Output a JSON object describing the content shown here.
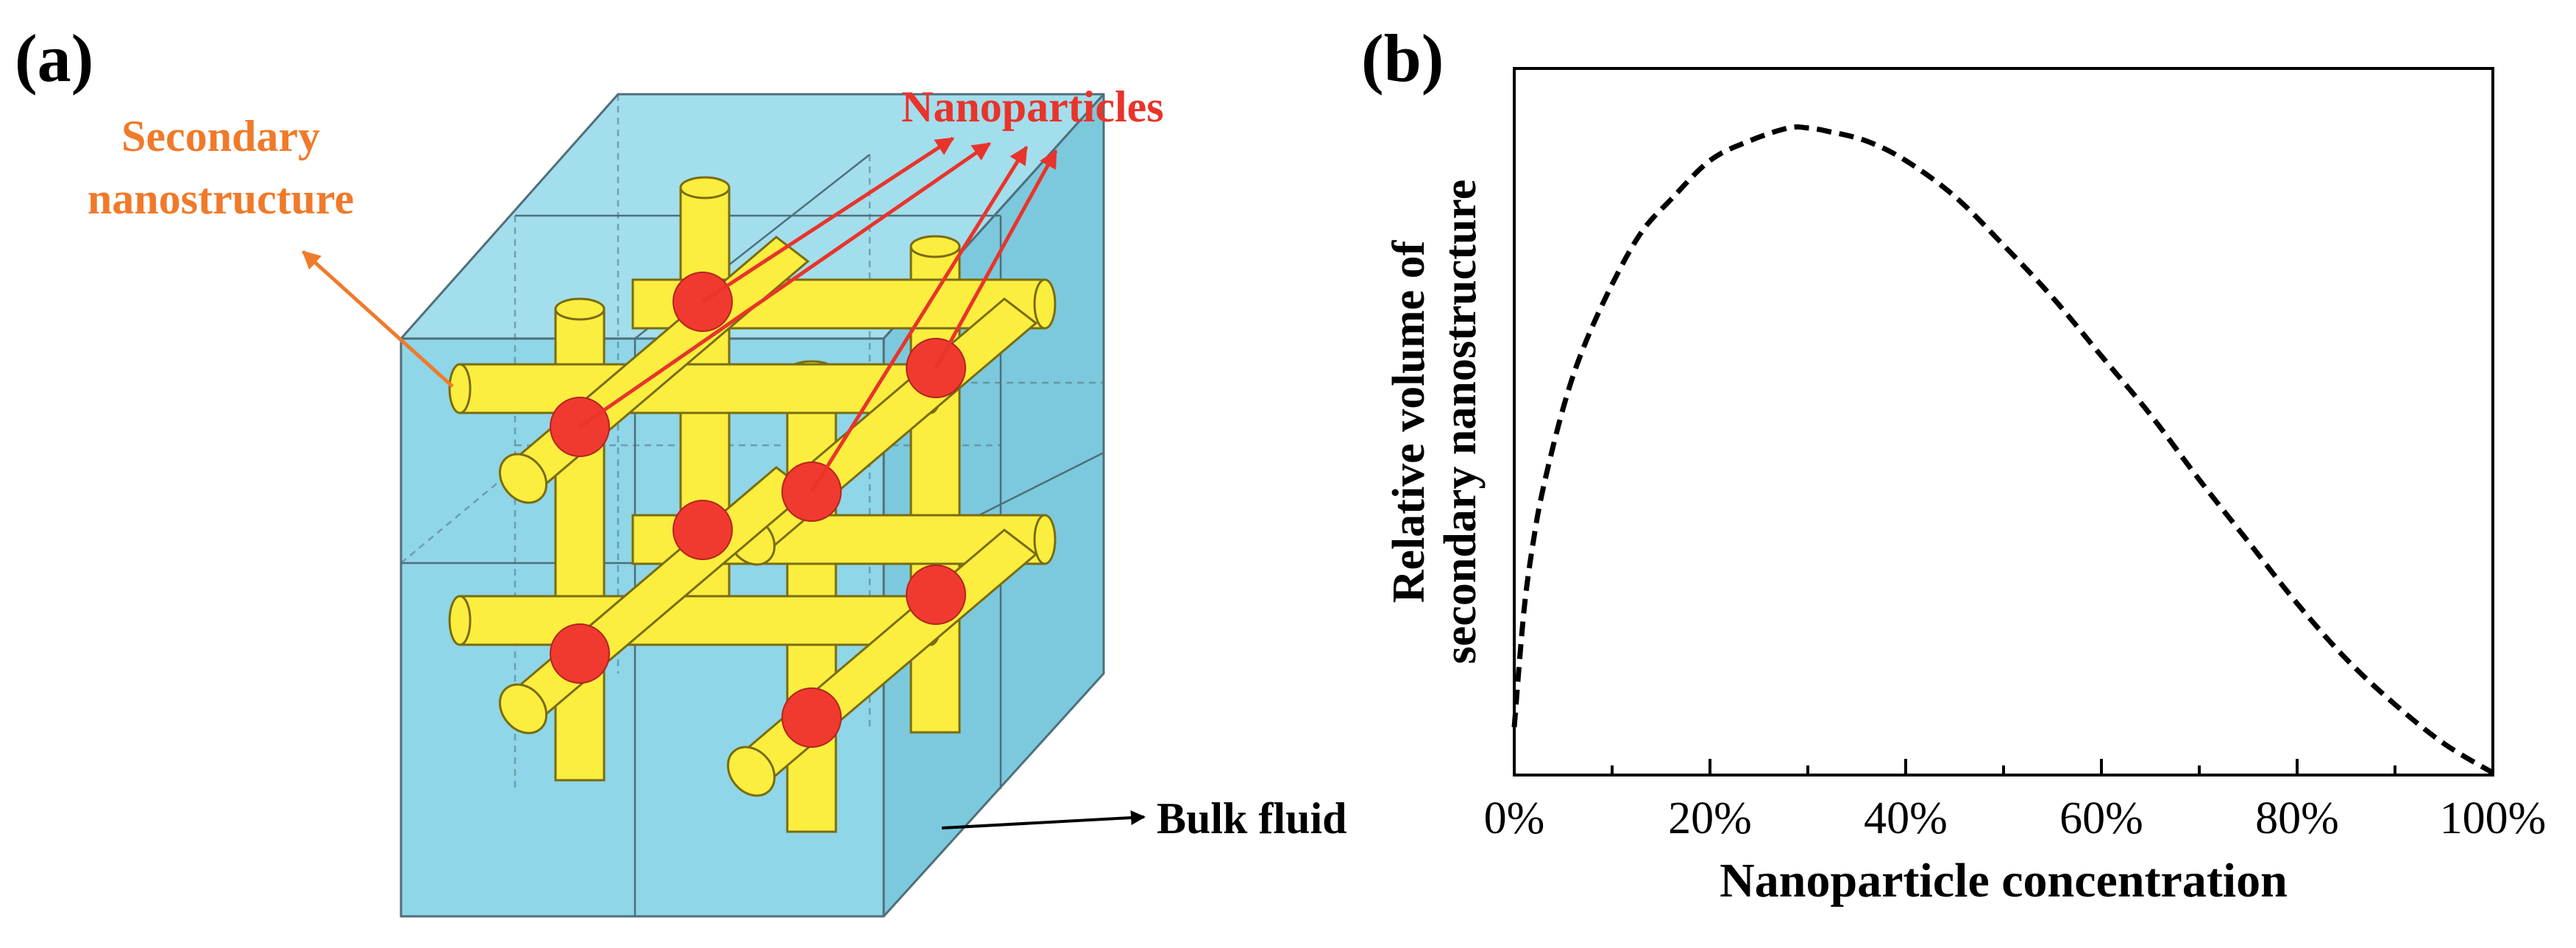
{
  "panel_a": {
    "label": "(a)",
    "annotations": {
      "nanoparticles": "Nanoparticles",
      "secondary_line1": "Secondary",
      "secondary_line2": "nanostructure",
      "bulk_fluid": "Bulk fluid"
    },
    "colors": {
      "cube_fill": "#8fd6e8",
      "cube_edge": "#4f6f7a",
      "rod_fill": "#fbee3f",
      "rod_edge": "#7a6c10",
      "particle": "#f03a30",
      "nanoparticle_arrow": "#e8342b",
      "secondary_arrow": "#f07a2a",
      "secondary_text": "#f07a2a",
      "nanoparticle_text": "#e8342b",
      "bulk_arrow": "#000000"
    }
  },
  "panel_b": {
    "label": "(b)"
  },
  "chart_data": {
    "type": "line",
    "title": "",
    "xlabel": "Nanoparticle concentration",
    "ylabel_line1": "Relative volume of",
    "ylabel_line2": "secondary nanostructure",
    "xlim": [
      0,
      100
    ],
    "ylim": [
      0,
      1
    ],
    "x_ticks": [
      0,
      20,
      40,
      60,
      80,
      100
    ],
    "x_tick_labels": [
      "0%",
      "20%",
      "40%",
      "60%",
      "80%",
      "100%"
    ],
    "y_ticks_labeled": false,
    "grid": false,
    "series": [
      {
        "name": "relative volume",
        "style": "dashed",
        "color": "#000000",
        "x": [
          0,
          1,
          2,
          3,
          5,
          7,
          10,
          13,
          16,
          20,
          24,
          28,
          30,
          32,
          36,
          40,
          45,
          50,
          55,
          60,
          65,
          70,
          75,
          80,
          85,
          90,
          95,
          100
        ],
        "y": [
          0.07,
          0.25,
          0.36,
          0.44,
          0.56,
          0.65,
          0.75,
          0.83,
          0.88,
          0.94,
          0.97,
          0.99,
          0.99,
          0.985,
          0.97,
          0.94,
          0.885,
          0.81,
          0.73,
          0.64,
          0.55,
          0.45,
          0.355,
          0.26,
          0.175,
          0.105,
          0.045,
          0.0
        ]
      }
    ]
  }
}
